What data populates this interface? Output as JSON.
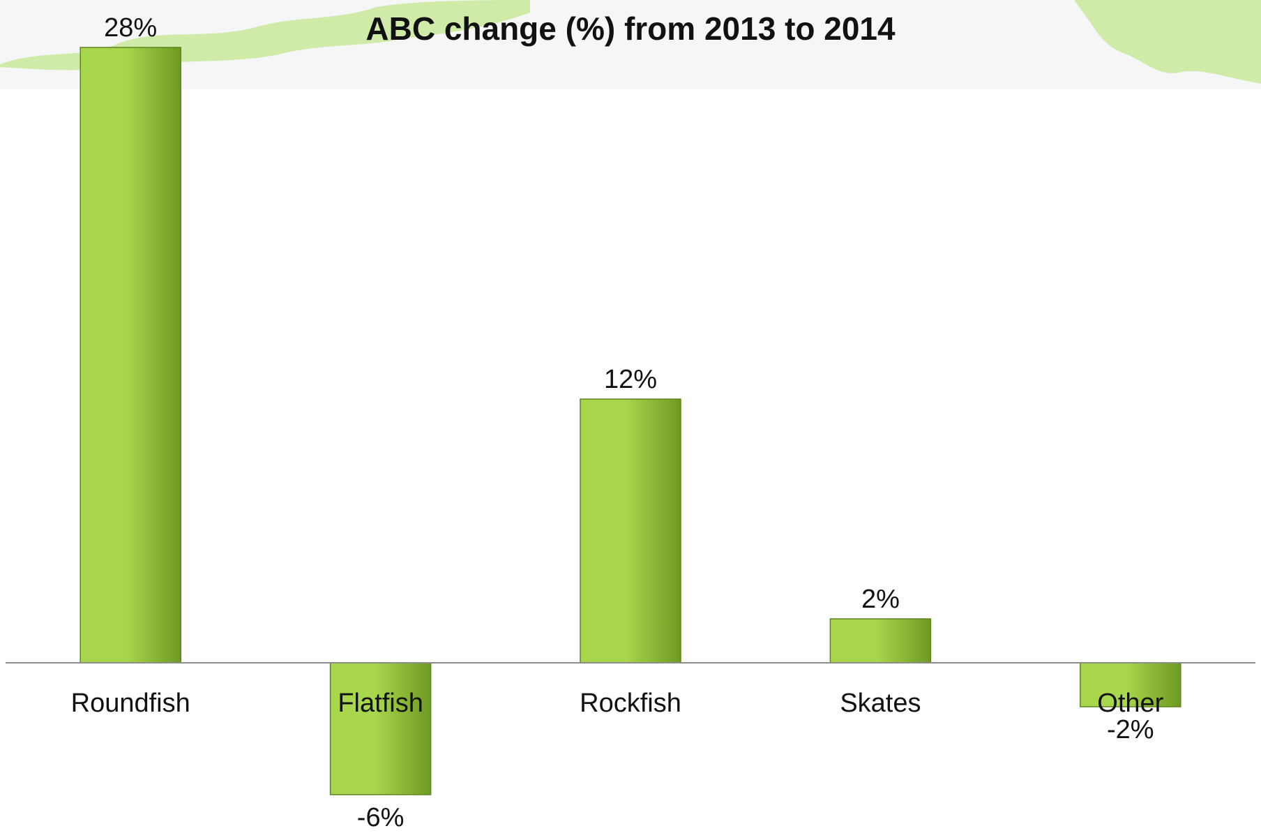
{
  "chart_data": {
    "type": "bar",
    "title": "ABC change (%) from 2013 to 2014",
    "categories": [
      "Roundfish",
      "Flatfish",
      "Rockfish",
      "Skates",
      "Other"
    ],
    "values": [
      28,
      -6,
      12,
      2,
      -2
    ],
    "data_labels": [
      "28%",
      "-6%",
      "12%",
      "2%",
      "-2%"
    ],
    "xlabel": "",
    "ylabel": "",
    "ylim": [
      -6,
      28
    ],
    "grid": false,
    "legend": "none"
  },
  "colors": {
    "bar_light": "#a8d64c",
    "bar_dark": "#6e9a22",
    "bar_edge": "#5e8420",
    "axis": "#8c8c8c",
    "banner": "#f6f6f6",
    "decor": "#c9e89a"
  }
}
